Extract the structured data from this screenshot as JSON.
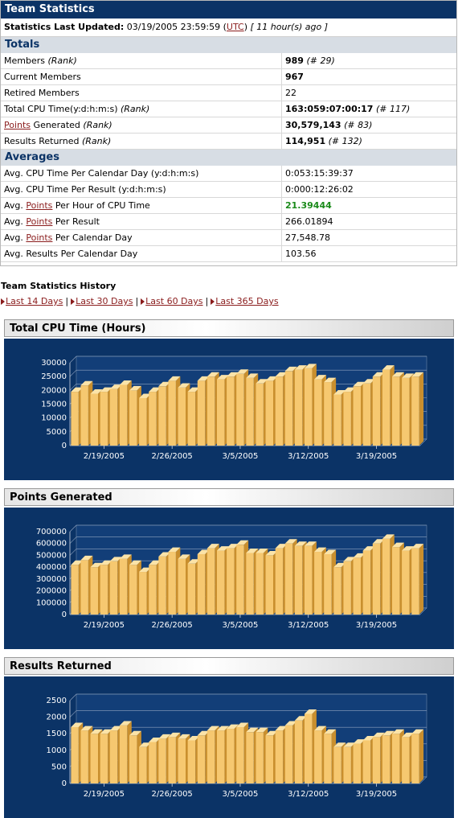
{
  "panel": {
    "title": "Team Statistics",
    "updated_label": "Statistics Last Updated:",
    "updated_value": "03/19/2005 23:59:59",
    "utc": "UTC",
    "ago": "[ 11 hour(s) ago ]"
  },
  "totals": {
    "heading": "Totals",
    "rows": [
      {
        "label": "Members",
        "rank_label": "(Rank)",
        "value": "989",
        "rank": "(# 29)"
      },
      {
        "label": "Current Members",
        "value": "967"
      },
      {
        "label": "Retired Members",
        "value": "22"
      },
      {
        "label": "Total CPU Time(y:d:h:m:s)",
        "rank_label": "(Rank)",
        "value": "163:059:07:00:17",
        "rank": "(# 117)"
      },
      {
        "link": "Points",
        "label": "Generated",
        "rank_label": "(Rank)",
        "value": "30,579,143",
        "rank": "(# 83)"
      },
      {
        "label": "Results Returned",
        "rank_label": "(Rank)",
        "value": "114,951",
        "rank": "(# 132)"
      }
    ]
  },
  "averages": {
    "heading": "Averages",
    "rows": [
      {
        "label": "Avg. CPU Time Per Calendar Day (y:d:h:m:s)",
        "value": "0:053:15:39:37"
      },
      {
        "label": "Avg. CPU Time Per Result (y:d:h:m:s)",
        "value": "0:000:12:26:02"
      },
      {
        "pre": "Avg.",
        "link": "Points",
        "post": "Per Hour of CPU Time",
        "value": "21.39444",
        "highlight": "#1a8a1a"
      },
      {
        "pre": "Avg.",
        "link": "Points",
        "post": "Per Result",
        "value": "266.01894"
      },
      {
        "pre": "Avg.",
        "link": "Points",
        "post": "Per Calendar Day",
        "value": "27,548.78"
      },
      {
        "label": "Avg. Results Per Calendar Day",
        "value": "103.56"
      }
    ]
  },
  "history": {
    "title": "Team Statistics History",
    "links": [
      "Last 14 Days",
      "Last 30 Days",
      "Last 60 Days",
      "Last 365 Days"
    ]
  },
  "colors": {
    "header_bg": "#0b3366",
    "bar": "#f6c870",
    "link": "#8a1c1c"
  },
  "chart_data": [
    {
      "type": "bar",
      "title": "Total CPU Time (Hours)",
      "x_ticks": [
        "2/19/2005",
        "2/26/2005",
        "3/5/2005",
        "3/12/2005",
        "3/19/2005"
      ],
      "y_ticks": [
        0,
        5000,
        10000,
        15000,
        20000,
        25000,
        30000
      ],
      "ylim": [
        0,
        30000
      ],
      "values": [
        19500,
        21800,
        18800,
        19500,
        20500,
        22000,
        20000,
        17200,
        19500,
        21500,
        23500,
        21000,
        19500,
        23500,
        25000,
        24000,
        25000,
        26000,
        24500,
        22500,
        23500,
        25000,
        27000,
        27500,
        28000,
        24000,
        23000,
        18500,
        19500,
        21500,
        22500,
        25000,
        27500,
        25000,
        24500,
        25000
      ]
    },
    {
      "type": "bar",
      "title": "Points Generated",
      "x_ticks": [
        "2/19/2005",
        "2/26/2005",
        "3/5/2005",
        "3/12/2005",
        "3/19/2005"
      ],
      "y_ticks": [
        0,
        100000,
        200000,
        300000,
        400000,
        500000,
        600000,
        700000
      ],
      "ylim": [
        0,
        700000
      ],
      "values": [
        420000,
        460000,
        400000,
        420000,
        450000,
        470000,
        420000,
        360000,
        420000,
        490000,
        530000,
        470000,
        430000,
        510000,
        560000,
        540000,
        560000,
        590000,
        520000,
        520000,
        500000,
        560000,
        600000,
        580000,
        580000,
        530000,
        510000,
        400000,
        450000,
        480000,
        540000,
        600000,
        640000,
        570000,
        540000,
        560000
      ]
    },
    {
      "type": "bar",
      "title": "Results Returned",
      "x_ticks": [
        "2/19/2005",
        "2/26/2005",
        "3/5/2005",
        "3/12/2005",
        "3/19/2005"
      ],
      "y_ticks": [
        0,
        500,
        1000,
        1500,
        2000,
        2500
      ],
      "ylim": [
        0,
        2500
      ],
      "values": [
        1700,
        1600,
        1500,
        1500,
        1600,
        1750,
        1450,
        1100,
        1250,
        1350,
        1400,
        1350,
        1300,
        1450,
        1600,
        1600,
        1650,
        1700,
        1550,
        1550,
        1450,
        1600,
        1750,
        1900,
        2100,
        1600,
        1500,
        1100,
        1100,
        1200,
        1300,
        1400,
        1450,
        1500,
        1400,
        1500
      ]
    }
  ]
}
